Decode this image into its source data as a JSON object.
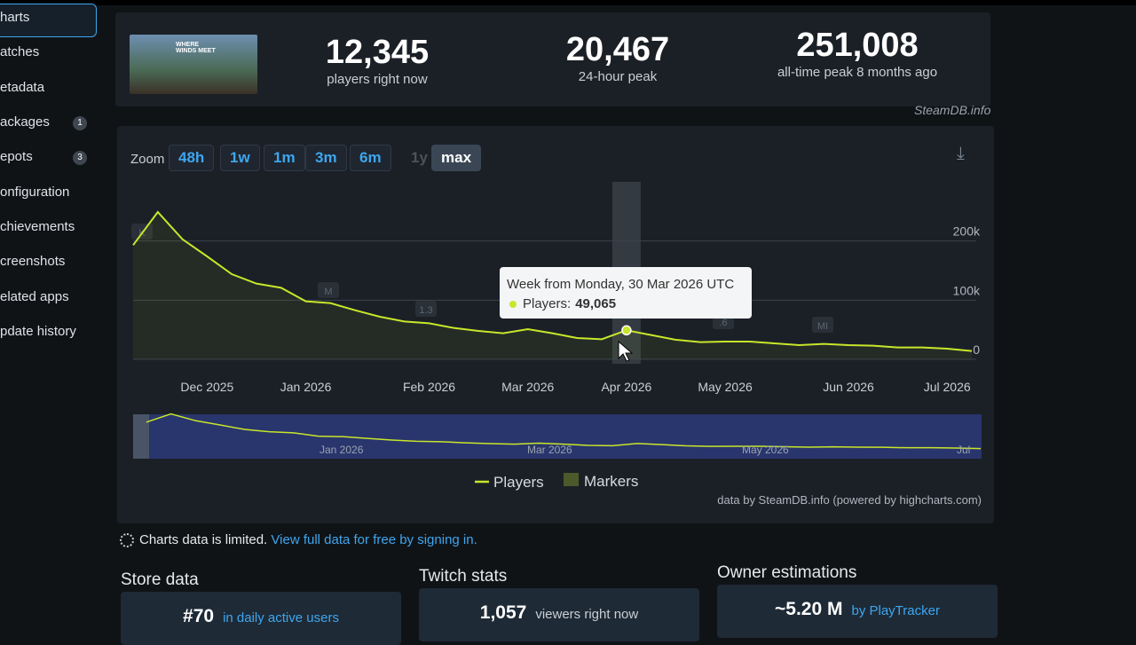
{
  "sidebar": {
    "items": [
      {
        "label": "harts"
      },
      {
        "label": "atches"
      },
      {
        "label": "etadata"
      },
      {
        "label": "ackages",
        "badge": "1"
      },
      {
        "label": "epots",
        "badge": "3"
      },
      {
        "label": "onfiguration"
      },
      {
        "label": "chievements"
      },
      {
        "label": "creenshots"
      },
      {
        "label": "elated apps"
      },
      {
        "label": "pdate history"
      }
    ]
  },
  "header": {
    "image_text": "WHERE WINDS MEET",
    "stats": [
      {
        "value": "12,345",
        "label": "players right now"
      },
      {
        "value": "20,467",
        "label": "24-hour peak"
      },
      {
        "value": "251,008",
        "label": "all-time peak 8 months ago"
      }
    ],
    "source": "SteamDB.info"
  },
  "zoom": {
    "label": "Zoom",
    "buttons": [
      "48h",
      "1w",
      "1m",
      "3m",
      "6m",
      "1y",
      "max"
    ]
  },
  "chart_data": {
    "type": "line",
    "categories": [
      null,
      null,
      null,
      "Dec 2025",
      null,
      null,
      null,
      "Jan 2026",
      null,
      null,
      null,
      null,
      "Feb 2026",
      null,
      null,
      null,
      "Mar 2026",
      null,
      null,
      null,
      "Apr 2026",
      null,
      null,
      null,
      "May 2026",
      null,
      null,
      null,
      null,
      "Jun 2026",
      null,
      null,
      null,
      "Jul 2026",
      null
    ],
    "series": [
      {
        "name": "Players",
        "color": "#c8e62a",
        "values": [
          193000,
          249000,
          203000,
          174000,
          144000,
          128000,
          121000,
          98000,
          95000,
          83000,
          72000,
          64000,
          61000,
          53000,
          48000,
          44000,
          51000,
          44000,
          36000,
          34000,
          49065,
          41000,
          33000,
          29000,
          30000,
          30000,
          27000,
          24000,
          26000,
          24000,
          23000,
          20000,
          20000,
          18000,
          14000
        ]
      }
    ],
    "markers": {
      "name": "Markers",
      "color": "#4a5a2a",
      "labels": [
        "K",
        "M",
        "1.3",
        ".6",
        "MI"
      ]
    },
    "ylim": [
      0,
      300000
    ],
    "yticks": [
      0,
      {
        "value": 100000,
        "label": "100k"
      },
      {
        "value": 200000,
        "label": "200k"
      }
    ],
    "tooltip": {
      "title": "Week from Monday, 30 Mar 2026 UTC",
      "series_label": "Players:",
      "value_label": "49,065"
    },
    "navigator_labels": [
      "Jan 2026",
      "Mar 2026",
      "May 2026",
      "Jul"
    ],
    "credits": "data by SteamDB.info (powered by highcharts.com)"
  },
  "notice": {
    "text": "Charts data is limited.",
    "link": "View full data for free by signing in."
  },
  "sections": [
    {
      "title": "Store data",
      "value": "#70",
      "label": "in daily active users"
    },
    {
      "title": "Twitch stats",
      "value": "1,057",
      "label": "viewers right now"
    },
    {
      "title": "Owner estimations",
      "value": "~5.20 M",
      "label": "by PlayTracker"
    }
  ]
}
